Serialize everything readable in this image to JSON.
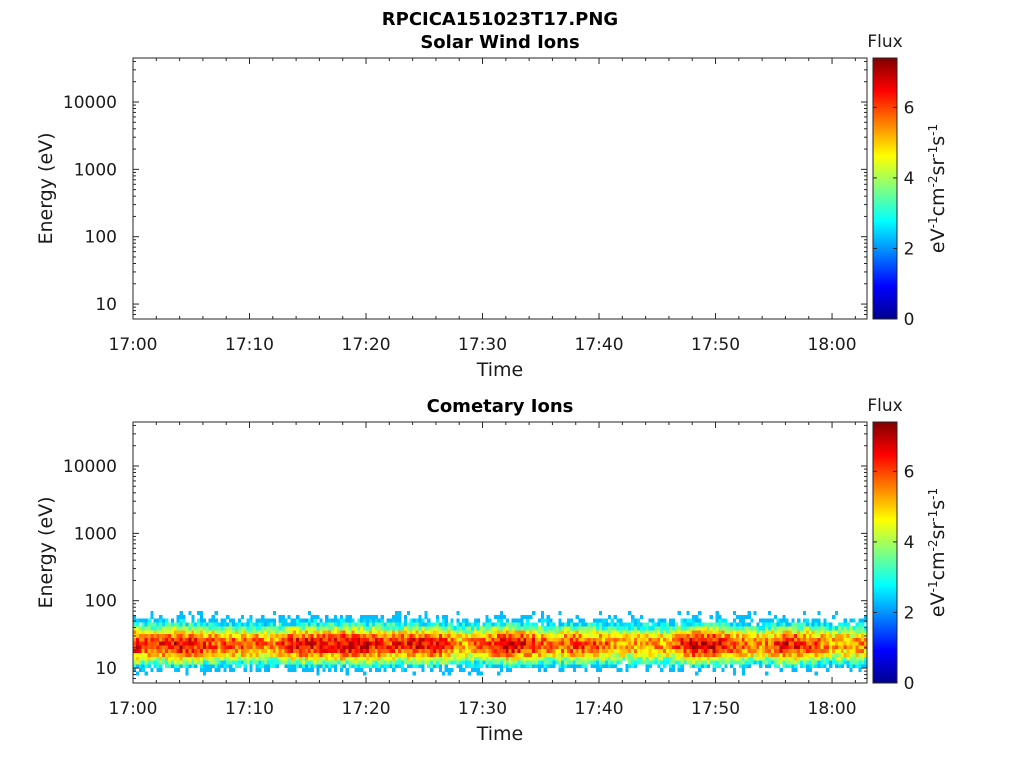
{
  "figure_title": "RPCICA151023T17.PNG",
  "colors": {
    "colormap": [
      "#00008f",
      "#0000ff",
      "#0080ff",
      "#00ffff",
      "#80ff80",
      "#ffff00",
      "#ff8000",
      "#ff0000",
      "#800000"
    ]
  },
  "chart_data": [
    {
      "type": "heatmap",
      "title": "Solar Wind Ions",
      "xlabel": "Time",
      "ylabel": "Energy (eV)",
      "y_scale": "log",
      "x_range": [
        "17:00",
        "18:03"
      ],
      "y_range": [
        6,
        45000
      ],
      "x_ticks": [
        "17:00",
        "17:10",
        "17:20",
        "17:30",
        "17:40",
        "17:50",
        "18:00"
      ],
      "y_ticks": [
        "10",
        "100",
        "1000",
        "10000"
      ],
      "colorbar": {
        "label": "Flux",
        "unit": "eV-1cm-2sr-1s-1",
        "range": [
          0,
          7.4
        ],
        "ticks": [
          "0",
          "2",
          "4",
          "6"
        ]
      },
      "data": []
    },
    {
      "type": "heatmap",
      "title": "Cometary Ions",
      "xlabel": "Time",
      "ylabel": "Energy (eV)",
      "y_scale": "log",
      "x_range": [
        "17:00",
        "18:03"
      ],
      "y_range": [
        6,
        45000
      ],
      "x_ticks": [
        "17:00",
        "17:10",
        "17:20",
        "17:30",
        "17:40",
        "17:50",
        "18:00"
      ],
      "y_ticks": [
        "10",
        "100",
        "1000",
        "10000"
      ],
      "colorbar": {
        "label": "Flux",
        "unit": "eV-1cm-2sr-1s-1",
        "range": [
          0,
          7.4
        ],
        "ticks": [
          "0",
          "2",
          "4",
          "6"
        ]
      },
      "energy_band": [
        6,
        80
      ],
      "flux_profile": {
        "time": [
          "17:00",
          "17:02",
          "17:04",
          "17:06",
          "17:08",
          "17:10",
          "17:12",
          "17:14",
          "17:16",
          "17:18",
          "17:20",
          "17:22",
          "17:24",
          "17:26",
          "17:28",
          "17:30",
          "17:32",
          "17:34",
          "17:36",
          "17:38",
          "17:40",
          "17:42",
          "17:44",
          "17:46",
          "17:48",
          "17:50",
          "17:52",
          "17:54",
          "17:56",
          "17:58",
          "18:00",
          "18:02"
        ],
        "peak_flux": [
          6.5,
          6.0,
          6.8,
          6.2,
          5.8,
          6.0,
          5.5,
          6.6,
          6.4,
          6.8,
          6.6,
          6.0,
          6.5,
          6.7,
          5.2,
          5.8,
          6.7,
          6.4,
          5.6,
          6.2,
          5.8,
          5.2,
          5.5,
          5.3,
          6.8,
          6.6,
          5.8,
          5.4,
          6.6,
          6.2,
          5.2,
          5.6
        ]
      }
    }
  ]
}
